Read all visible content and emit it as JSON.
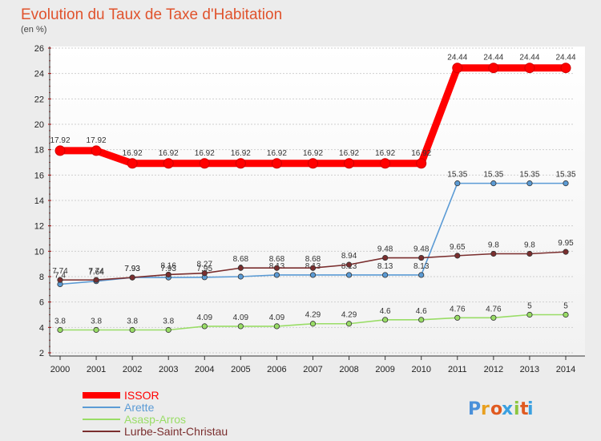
{
  "chart_data": {
    "type": "line",
    "title": "Evolution du Taux de Taxe d'Habitation",
    "subtitle": "(en %)",
    "xlabel": "",
    "ylabel": "",
    "x": [
      "2000",
      "2001",
      "2002",
      "2003",
      "2004",
      "2005",
      "2006",
      "2007",
      "2008",
      "2009",
      "2010",
      "2011",
      "2012",
      "2013",
      "2014"
    ],
    "ylim": [
      2,
      26
    ],
    "yticks": [
      "2",
      "4",
      "6",
      "8",
      "10",
      "12",
      "14",
      "16",
      "18",
      "20",
      "22",
      "24",
      "26"
    ],
    "grid": "horizontal dotted",
    "legend_position": "bottom-left",
    "series": [
      {
        "name": "ISSOR",
        "color": "#ff0000",
        "values": [
          17.92,
          17.92,
          16.92,
          16.92,
          16.92,
          16.92,
          16.92,
          16.92,
          16.92,
          16.92,
          16.92,
          24.44,
          24.44,
          24.44,
          24.44
        ],
        "labels": [
          "17.92",
          "17.92",
          "16.92",
          "16.92",
          "16.92",
          "16.92",
          "16.92",
          "16.92",
          "16.92",
          "16.92",
          "16.92",
          "24.44",
          "24.44",
          "24.44",
          "24.44"
        ]
      },
      {
        "name": "Arette",
        "color": "#5b9bd5",
        "values": [
          7.4,
          7.64,
          7.93,
          7.93,
          7.95,
          8.0,
          8.13,
          8.13,
          8.13,
          8.13,
          8.13,
          15.35,
          15.35,
          15.35,
          15.35
        ],
        "labels": [
          "7.4",
          "7.64",
          "7.93",
          "7.93",
          "7.95",
          "8",
          "8.13",
          "8.13",
          "8.13",
          "8.13",
          "8.13",
          "15.35",
          "15.35",
          "15.35",
          "15.35"
        ]
      },
      {
        "name": "Asasp-Arros",
        "color": "#99dd66",
        "values": [
          3.8,
          3.8,
          3.8,
          3.8,
          4.09,
          4.09,
          4.09,
          4.29,
          4.29,
          4.6,
          4.6,
          4.76,
          4.76,
          5,
          5
        ],
        "labels": [
          "3.8",
          "3.8",
          "3.8",
          "3.8",
          "4.09",
          "4.09",
          "4.09",
          "4.29",
          "4.29",
          "4.6",
          "4.6",
          "4.76",
          "4.76",
          "5",
          "5"
        ]
      },
      {
        "name": "Lurbe-Saint-Christau",
        "color": "#7a2e2e",
        "values": [
          7.74,
          7.74,
          7.93,
          8.16,
          8.27,
          8.68,
          8.68,
          8.68,
          8.94,
          9.48,
          9.48,
          9.65,
          9.8,
          9.8,
          9.95
        ],
        "labels": [
          "7.74",
          "7.74",
          "7.93",
          "8.16",
          "8.27",
          "8.68",
          "8.68",
          "8.68",
          "8.94",
          "9.48",
          "9.48",
          "9.65",
          "9.8",
          "9.8",
          "9.95"
        ]
      }
    ]
  },
  "logo": {
    "text": "Proxiti"
  }
}
